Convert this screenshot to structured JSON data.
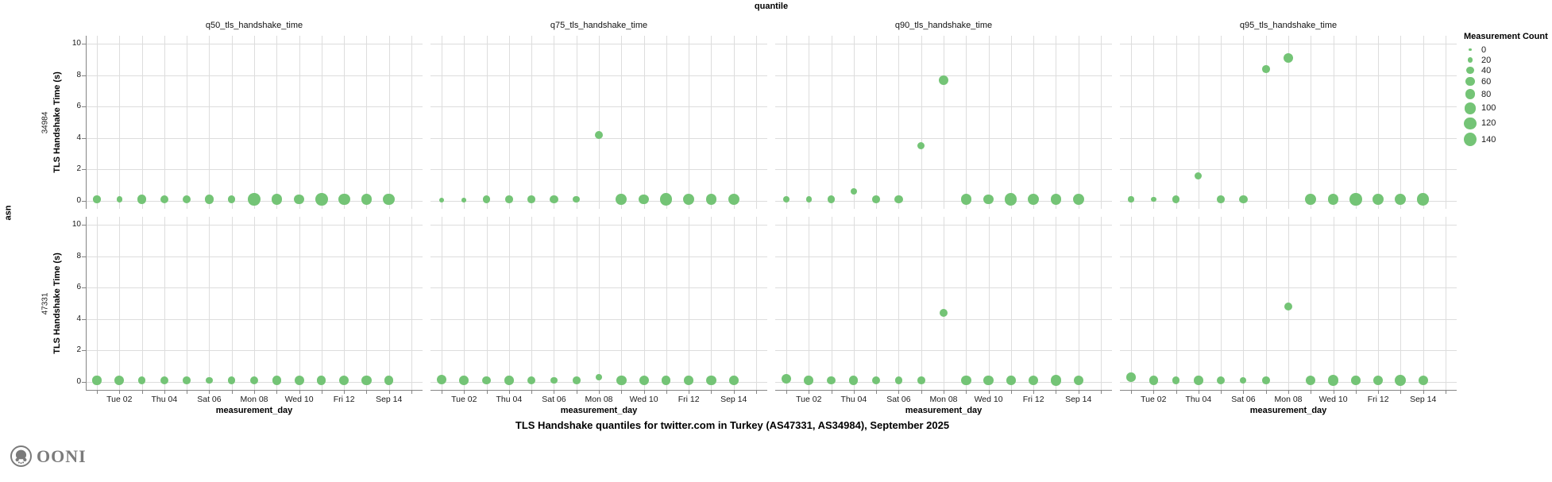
{
  "header": {
    "facet_column_title": "quantile",
    "facet_row_title": "asn"
  },
  "axes": {
    "y_label": "TLS Handshake Time (s)",
    "x_label": "measurement_day"
  },
  "legend": {
    "title": "Measurement Count",
    "sizes": [
      0,
      20,
      40,
      60,
      80,
      100,
      120,
      140
    ]
  },
  "title": "TLS Handshake quantiles for twitter.com in Turkey (AS47331, AS34984), September 2025",
  "logo": {
    "text": "OONI"
  },
  "colors": {
    "bubble": "#74c476",
    "grid": "#dddddd",
    "axis": "#858585",
    "text": "#1a1a1a",
    "logo": "#7b7b7b"
  },
  "chart_data": {
    "type": "scatter",
    "title": "TLS Handshake quantiles for twitter.com in Turkey (AS47331, AS34984), September 2025",
    "xlabel": "measurement_day",
    "ylabel": "TLS Handshake Time (s)",
    "ylim": [
      0,
      10
    ],
    "y_ticks": [
      0,
      2,
      4,
      6,
      8,
      10
    ],
    "x_domain_days": [
      1,
      15
    ],
    "x_ticks": [
      {
        "day": 2,
        "label": "Tue 02"
      },
      {
        "day": 4,
        "label": "Thu 04"
      },
      {
        "day": 6,
        "label": "Sat 06"
      },
      {
        "day": 8,
        "label": "Mon 08"
      },
      {
        "day": 10,
        "label": "Wed 10"
      },
      {
        "day": 12,
        "label": "Fri 12"
      },
      {
        "day": 14,
        "label": "Sep 14"
      }
    ],
    "size_field": "Measurement Count",
    "facet_columns": [
      "q50_tls_handshake_time",
      "q75_tls_handshake_time",
      "q90_tls_handshake_time",
      "q95_tls_handshake_time"
    ],
    "facet_rows": [
      "34984",
      "47331"
    ],
    "facets": [
      {
        "asn": "34984",
        "quantile": "q50_tls_handshake_time",
        "days": [
          1,
          2,
          3,
          4,
          5,
          6,
          7,
          8,
          9,
          10,
          11,
          12,
          13,
          14
        ],
        "values": [
          0.1,
          0.1,
          0.1,
          0.1,
          0.1,
          0.1,
          0.1,
          0.1,
          0.1,
          0.1,
          0.1,
          0.1,
          0.1,
          0.1
        ],
        "counts": [
          40,
          25,
          65,
          55,
          55,
          65,
          40,
          120,
          85,
          75,
          120,
          105,
          85,
          105
        ]
      },
      {
        "asn": "34984",
        "quantile": "q75_tls_handshake_time",
        "days": [
          1,
          2,
          3,
          4,
          5,
          6,
          7,
          8,
          9,
          10,
          11,
          12,
          13,
          14
        ],
        "values": [
          0.05,
          0.05,
          0.1,
          0.1,
          0.1,
          0.1,
          0.1,
          4.2,
          0.1,
          0.1,
          0.1,
          0.1,
          0.1,
          0.1
        ],
        "counts": [
          20,
          15,
          45,
          45,
          45,
          50,
          35,
          55,
          90,
          80,
          110,
          100,
          90,
          100
        ]
      },
      {
        "asn": "34984",
        "quantile": "q90_tls_handshake_time",
        "days": [
          1,
          2,
          3,
          4,
          5,
          6,
          7,
          8,
          9,
          10,
          11,
          12,
          13,
          14
        ],
        "values": [
          0.1,
          0.1,
          0.1,
          0.6,
          0.1,
          0.1,
          3.5,
          7.7,
          0.1,
          0.1,
          0.1,
          0.1,
          0.1,
          0.1
        ],
        "counts": [
          30,
          25,
          40,
          35,
          45,
          50,
          40,
          70,
          85,
          75,
          110,
          95,
          90,
          100
        ]
      },
      {
        "asn": "34984",
        "quantile": "q95_tls_handshake_time",
        "days": [
          1,
          2,
          3,
          4,
          5,
          6,
          7,
          8,
          9,
          10,
          11,
          12,
          13,
          14
        ],
        "values": [
          0.1,
          0.1,
          0.1,
          1.6,
          0.1,
          0.1,
          8.4,
          9.1,
          0.1,
          0.1,
          0.1,
          0.1,
          0.1,
          0.1
        ],
        "counts": [
          25,
          20,
          45,
          40,
          45,
          50,
          45,
          75,
          90,
          85,
          115,
          100,
          95,
          110
        ]
      },
      {
        "asn": "47331",
        "quantile": "q50_tls_handshake_time",
        "days": [
          1,
          2,
          3,
          4,
          5,
          6,
          7,
          8,
          9,
          10,
          11,
          12,
          13,
          14
        ],
        "values": [
          0.1,
          0.1,
          0.1,
          0.1,
          0.1,
          0.1,
          0.1,
          0.1,
          0.1,
          0.1,
          0.1,
          0.1,
          0.1,
          0.1
        ],
        "counts": [
          60,
          70,
          45,
          55,
          45,
          35,
          40,
          50,
          60,
          70,
          60,
          70,
          80,
          60
        ]
      },
      {
        "asn": "47331",
        "quantile": "q75_tls_handshake_time",
        "days": [
          1,
          2,
          3,
          4,
          5,
          6,
          7,
          8,
          9,
          10,
          11,
          12,
          13,
          14
        ],
        "values": [
          0.15,
          0.1,
          0.1,
          0.1,
          0.1,
          0.1,
          0.1,
          0.3,
          0.1,
          0.1,
          0.1,
          0.1,
          0.1,
          0.1
        ],
        "counts": [
          70,
          65,
          50,
          65,
          55,
          35,
          45,
          30,
          75,
          70,
          60,
          65,
          75,
          65
        ]
      },
      {
        "asn": "47331",
        "quantile": "q90_tls_handshake_time",
        "days": [
          1,
          2,
          3,
          4,
          5,
          6,
          7,
          8,
          9,
          10,
          11,
          12,
          13,
          14
        ],
        "values": [
          0.2,
          0.1,
          0.1,
          0.1,
          0.1,
          0.1,
          0.1,
          4.4,
          0.1,
          0.1,
          0.1,
          0.1,
          0.1,
          0.1
        ],
        "counts": [
          70,
          65,
          50,
          60,
          55,
          40,
          45,
          55,
          75,
          80,
          65,
          75,
          90,
          70
        ]
      },
      {
        "asn": "47331",
        "quantile": "q95_tls_handshake_time",
        "days": [
          1,
          2,
          3,
          4,
          5,
          6,
          7,
          8,
          9,
          10,
          11,
          12,
          13,
          14
        ],
        "values": [
          0.3,
          0.1,
          0.1,
          0.1,
          0.1,
          0.1,
          0.1,
          4.8,
          0.1,
          0.1,
          0.1,
          0.1,
          0.1,
          0.1
        ],
        "counts": [
          65,
          60,
          45,
          65,
          50,
          30,
          45,
          50,
          70,
          85,
          65,
          70,
          95,
          70
        ]
      }
    ]
  }
}
